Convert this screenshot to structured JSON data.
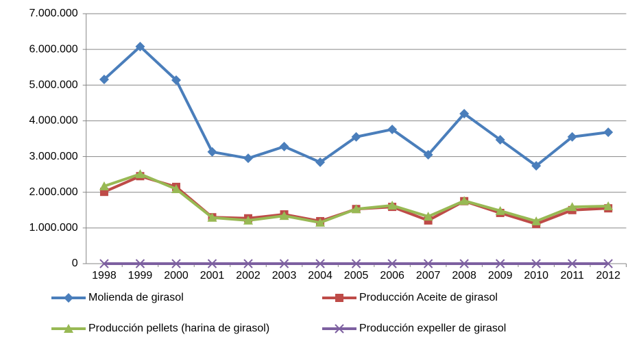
{
  "chart_data": {
    "type": "line",
    "categories": [
      "1998",
      "1999",
      "2000",
      "2001",
      "2002",
      "2003",
      "2004",
      "2005",
      "2006",
      "2007",
      "2008",
      "2009",
      "2010",
      "2011",
      "2012"
    ],
    "series": [
      {
        "name": "Molienda de girasol",
        "color": "#4a7ebb",
        "marker": "diamond",
        "values": [
          5160000,
          6080000,
          5140000,
          3130000,
          2950000,
          3280000,
          2840000,
          3550000,
          3760000,
          3050000,
          4200000,
          3470000,
          2740000,
          3550000,
          3680000
        ]
      },
      {
        "name": "Producción Aceite de girasol",
        "color": "#be4b48",
        "marker": "square",
        "values": [
          2010000,
          2450000,
          2150000,
          1300000,
          1270000,
          1380000,
          1190000,
          1530000,
          1590000,
          1210000,
          1750000,
          1420000,
          1110000,
          1500000,
          1550000
        ]
      },
      {
        "name": "Producción pellets (harina de girasol)",
        "color": "#98b954",
        "marker": "triangle",
        "values": [
          2170000,
          2510000,
          2090000,
          1290000,
          1210000,
          1340000,
          1150000,
          1530000,
          1630000,
          1320000,
          1760000,
          1480000,
          1190000,
          1590000,
          1610000
        ]
      },
      {
        "name": "Producción expeller de girasol",
        "color": "#7d60a0",
        "marker": "x",
        "values": [
          0,
          0,
          0,
          0,
          0,
          0,
          0,
          0,
          0,
          0,
          0,
          0,
          0,
          0,
          0
        ]
      }
    ],
    "ylim": [
      0,
      7000000
    ],
    "yticks": [
      0,
      {
        "value": 1000000,
        "label": "1.000.000"
      },
      {
        "value": 2000000,
        "label": "2.000.000"
      },
      {
        "value": 3000000,
        "label": "3.000.000"
      },
      {
        "value": 4000000,
        "label": "4.000.000"
      },
      {
        "value": 5000000,
        "label": "5.000.000"
      },
      {
        "value": 6000000,
        "label": "6.000.000"
      },
      {
        "value": 7000000,
        "label": "7.000.000"
      }
    ],
    "grid": true,
    "legend": "bottom"
  }
}
